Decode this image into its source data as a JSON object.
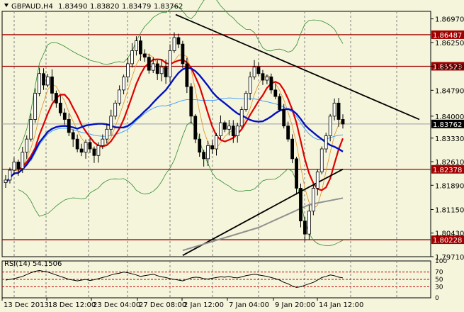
{
  "header": {
    "symbol_timeframe": "GBPAUD,H4",
    "open": "1.83490",
    "high": "1.83820",
    "low": "1.83479",
    "close": "1.83762"
  },
  "colors": {
    "background": "#f5f5dc",
    "grid": "#808080",
    "candle": "#000000",
    "resistance_support": "#a00000",
    "ma_red": "#e00000",
    "ma_blue": "#0010c0",
    "ma_black": "#000000",
    "ma_gray": "#909090",
    "ma_lightblue": "#3399ff",
    "ma_orange": "#e09020",
    "bollinger": "#2e8b2e",
    "rsi_line": "#000000",
    "rsi_levels": "#c00000",
    "current_price_line": "#9999aa"
  },
  "chart_data": {
    "type": "candlestick",
    "symbol": "GBPAUD",
    "timeframe": "H4",
    "ylim": [
      1.7971,
      1.872
    ],
    "price_ticks": [
      "1.86970",
      "1.86250",
      "1.85520",
      "1.84790",
      "1.84000",
      "1.83330",
      "1.82610",
      "1.81890",
      "1.81150",
      "1.80430",
      "1.79710"
    ],
    "horizontal_levels": [
      {
        "label": "1.86487",
        "value": 1.86487
      },
      {
        "label": "1.85523",
        "value": 1.85523
      },
      {
        "label": "1.82378",
        "value": 1.82378
      },
      {
        "label": "1.80228",
        "value": 1.80228
      }
    ],
    "current_price": {
      "label": "1.83762",
      "value": 1.83762
    },
    "x_labels": [
      "13 Dec 2013",
      "18 Dec 12:00",
      "23 Dec 04:00",
      "27 Dec 08:00",
      "2 Jan 12:00",
      "7 Jan 04:00",
      "9 Jan 20:00",
      "14 Jan 12:00"
    ],
    "ohlc_close_path": [
      1.8205,
      1.8235,
      1.826,
      1.824,
      1.829,
      1.833,
      1.839,
      1.847,
      1.853,
      1.8495,
      1.852,
      1.847,
      1.844,
      1.841,
      1.839,
      1.835,
      1.833,
      1.83,
      1.829,
      1.832,
      1.83,
      1.828,
      1.831,
      1.833,
      1.836,
      1.84,
      1.844,
      1.848,
      1.852,
      1.856,
      1.86,
      1.863,
      1.859,
      1.858,
      1.854,
      1.856,
      1.853,
      1.855,
      1.852,
      1.86,
      1.864,
      1.862,
      1.856,
      1.849,
      1.84,
      1.833,
      1.829,
      1.827,
      1.831,
      1.83,
      1.834,
      1.838,
      1.836,
      1.837,
      1.834,
      1.837,
      1.842,
      1.847,
      1.852,
      1.855,
      1.853,
      1.851,
      1.852,
      1.848,
      1.846,
      1.842,
      1.837,
      1.833,
      1.827,
      1.818,
      1.808,
      1.804,
      1.811,
      1.818,
      1.823,
      1.83,
      1.834,
      1.84,
      1.844,
      1.839,
      1.8376
    ],
    "trendline": {
      "from": [
        1.871,
        0
      ],
      "to": [
        1.839,
        1
      ]
    },
    "rsi": {
      "label": "RSI(14) 54.1506",
      "levels": [
        70,
        50,
        30
      ],
      "ticks": [
        "100",
        "70",
        "50",
        "30",
        "0"
      ],
      "values": [
        48,
        50,
        52,
        55,
        58,
        63,
        68,
        72,
        74,
        72,
        70,
        66,
        62,
        58,
        54,
        50,
        48,
        46,
        48,
        50,
        47,
        49,
        52,
        55,
        58,
        62,
        65,
        67,
        70,
        68,
        65,
        62,
        58,
        60,
        62,
        64,
        60,
        57,
        55,
        52,
        50,
        48,
        46,
        50,
        54,
        56,
        55,
        52,
        51,
        53,
        55,
        57,
        56,
        58,
        55,
        54,
        57,
        60,
        62,
        64,
        62,
        60,
        58,
        55,
        52,
        48,
        42,
        38,
        32,
        28,
        30,
        34,
        38,
        42,
        48,
        55,
        58,
        62,
        60,
        56,
        54
      ]
    }
  }
}
